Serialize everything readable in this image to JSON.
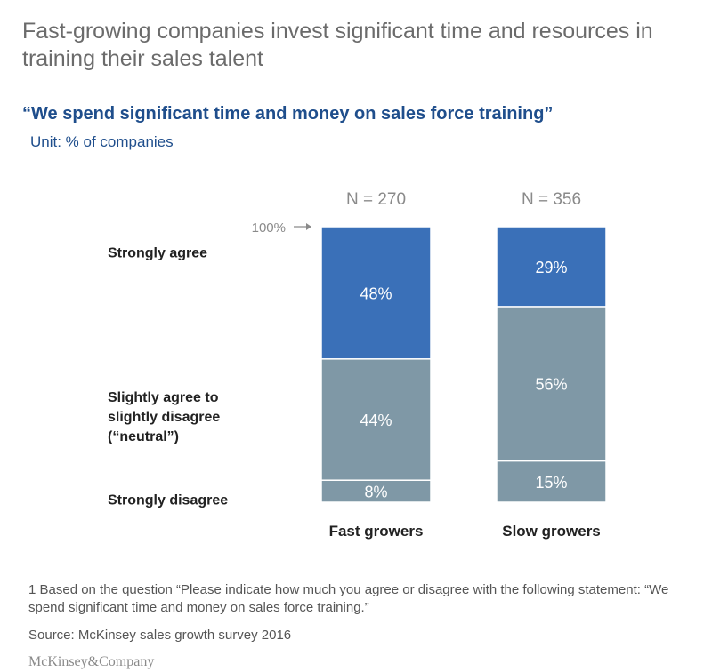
{
  "page": {
    "title": "Fast-growing companies invest significant time and resources in training their sales talent",
    "subtitle": "“We spend significant time and money on sales force training”",
    "unit": "Unit: % of companies",
    "footnote": "1 Based on the question “Please indicate how much you agree or disagree with the following statement: “We spend significant time and money on sales force training.”",
    "source": "Source: McKinsey sales growth survey 2016",
    "logo": "McKinsey&Company"
  },
  "colors": {
    "strongly_agree": "#3a70b8",
    "neutral": "#7f98a6",
    "strongly_disagree": "#7f98a6",
    "category_label": "#222222",
    "n_label": "#8a8a8a"
  },
  "chart_data": {
    "type": "bar",
    "stacked": true,
    "categories": [
      "Fast growers",
      "Slow growers"
    ],
    "sample_sizes": [
      "N = 270",
      "N = 356"
    ],
    "total_marker": "100%",
    "series": [
      {
        "name": "Strongly disagree",
        "values": [
          8,
          15
        ],
        "labels": [
          "8%",
          "15%"
        ],
        "color_key": "strongly_disagree"
      },
      {
        "name": "Slightly agree to slightly disagree (“neutral”)",
        "values": [
          44,
          56
        ],
        "labels": [
          "44%",
          "56%"
        ],
        "color_key": "neutral"
      },
      {
        "name": "Strongly agree",
        "values": [
          48,
          29
        ],
        "labels": [
          "48%",
          "29%"
        ],
        "color_key": "strongly_agree"
      }
    ],
    "series_labels_lines": [
      [
        "Strongly disagree"
      ],
      [
        "Slightly agree to",
        "slightly disagree",
        "(“neutral”)"
      ],
      [
        "Strongly agree"
      ]
    ],
    "ylim": [
      0,
      100
    ],
    "grid": false,
    "legend": "left"
  }
}
